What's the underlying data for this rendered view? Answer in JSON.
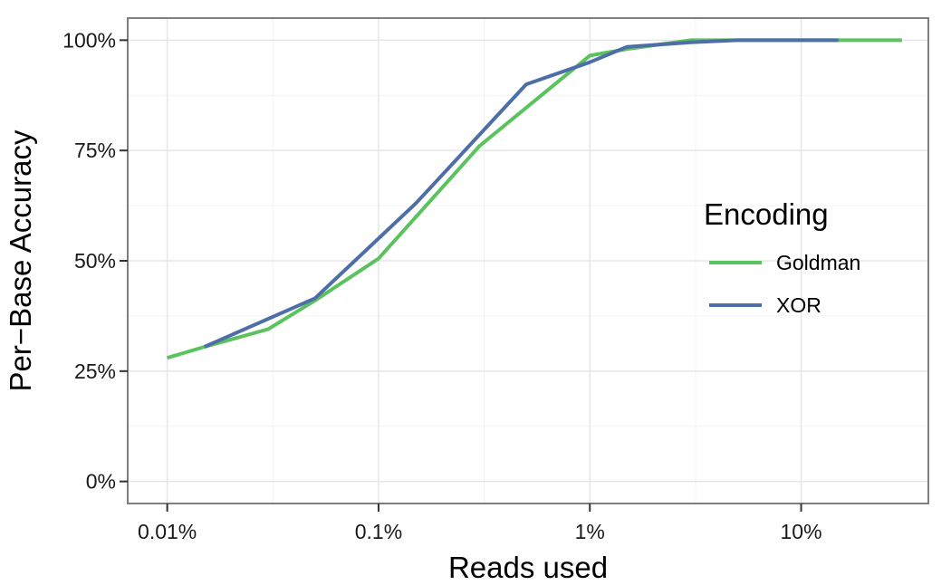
{
  "chart_data": {
    "type": "line",
    "xlabel": "Reads used",
    "ylabel": "Per−Base Accuracy",
    "x_scale": "log10",
    "x_ticks": [
      {
        "value": 0.01,
        "label": "0.01%"
      },
      {
        "value": 0.1,
        "label": "0.1%"
      },
      {
        "value": 1,
        "label": "1%"
      },
      {
        "value": 10,
        "label": "10%"
      }
    ],
    "y_ticks": [
      {
        "value": 0,
        "label": "0%"
      },
      {
        "value": 25,
        "label": "25%"
      },
      {
        "value": 50,
        "label": "50%"
      },
      {
        "value": 75,
        "label": "75%"
      },
      {
        "value": 100,
        "label": "100%"
      }
    ],
    "xlim": [
      0.0065,
      40
    ],
    "ylim": [
      -5,
      105
    ],
    "grid": true,
    "legend": {
      "title": "Encoding",
      "placement": "right"
    },
    "series": [
      {
        "name": "Goldman",
        "color": "#5ac35e",
        "x": [
          0.01,
          0.015,
          0.03,
          0.05,
          0.1,
          0.3,
          1,
          1.5,
          3,
          5,
          10,
          15,
          30
        ],
        "y": [
          28,
          30.5,
          34.5,
          41,
          50.5,
          76,
          96.5,
          98,
          100,
          100,
          100,
          100,
          100
        ]
      },
      {
        "name": "XOR",
        "color": "#4e6ea8",
        "x": [
          0.015,
          0.05,
          0.15,
          0.5,
          1,
          1.5,
          3,
          5,
          10,
          15
        ],
        "y": [
          30.5,
          41.5,
          63,
          90,
          95,
          98.5,
          99.5,
          100,
          100,
          100
        ]
      }
    ]
  }
}
